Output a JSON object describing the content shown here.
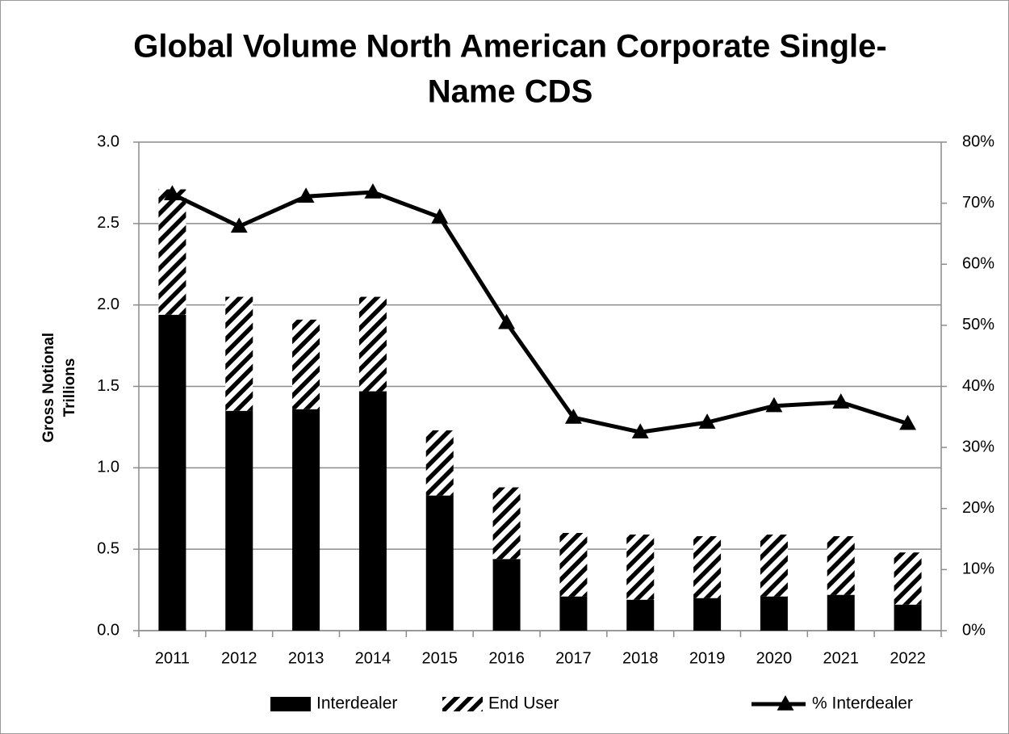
{
  "chart_data": {
    "type": "bar",
    "title_lines": [
      "Global Volume North American Corporate Single-",
      "Name CDS"
    ],
    "ylabel_lines": [
      "Gross Notional",
      "Trillions"
    ],
    "categories": [
      "2011",
      "2012",
      "2013",
      "2014",
      "2015",
      "2016",
      "2017",
      "2018",
      "2019",
      "2020",
      "2021",
      "2022"
    ],
    "series": [
      {
        "name": "Interdealer",
        "type": "bar",
        "color": "#000000",
        "stacked": true,
        "values": [
          1.94,
          1.35,
          1.36,
          1.47,
          0.83,
          0.44,
          0.21,
          0.19,
          0.2,
          0.21,
          0.22,
          0.16
        ]
      },
      {
        "name": "End User",
        "type": "bar",
        "color": "#000000",
        "pattern": "hatch",
        "stacked": true,
        "values": [
          0.77,
          0.7,
          0.55,
          0.58,
          0.4,
          0.44,
          0.39,
          0.4,
          0.38,
          0.38,
          0.36,
          0.32
        ]
      },
      {
        "name": "% Interdealer",
        "type": "line",
        "color": "#000000",
        "marker": "triangle",
        "axis": "y2",
        "values": [
          71.5,
          66.2,
          71.1,
          71.8,
          67.7,
          50.4,
          34.9,
          32.5,
          34.1,
          36.8,
          37.4,
          33.9
        ]
      }
    ],
    "ylim": [
      0,
      3
    ],
    "yticks": [
      {
        "value": 0,
        "label": "0.0"
      },
      0.5,
      {
        "value": 1,
        "label": "1.0"
      },
      1.5,
      {
        "value": 2,
        "label": "2.0"
      },
      2.5,
      {
        "value": 3,
        "label": "3.0"
      }
    ],
    "y2lim": [
      0,
      80
    ],
    "y2ticks": [
      {
        "value": 0,
        "label": "0%"
      },
      {
        "value": 10,
        "label": "10%"
      },
      {
        "value": 20,
        "label": "20%"
      },
      {
        "value": 30,
        "label": "30%"
      },
      {
        "value": 40,
        "label": "40%"
      },
      {
        "value": 50,
        "label": "50%"
      },
      {
        "value": 60,
        "label": "60%"
      },
      {
        "value": 70,
        "label": "70%"
      },
      {
        "value": 80,
        "label": "80%"
      }
    ],
    "grid": true,
    "legend": "bottom"
  }
}
